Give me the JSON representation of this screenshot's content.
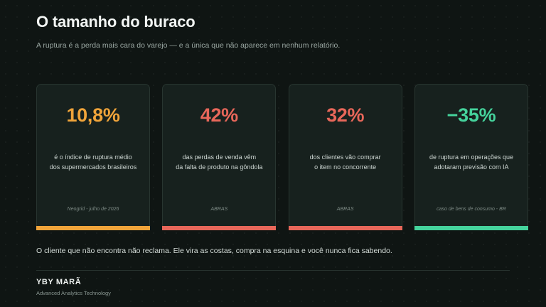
{
  "header": {
    "title": "O tamanho do buraco",
    "subtitle": "A ruptura é a perda mais cara do varejo — e a única que não aparece em nenhum relatório."
  },
  "cards": [
    {
      "value": "10,8%",
      "desc_line1": "é o índice de ruptura médio",
      "desc_line2": "dos supermercados brasileiros",
      "source": "Neogrid - julho de 2026",
      "color": "#f0a43a"
    },
    {
      "value": "42%",
      "desc_line1": "das perdas de venda vêm",
      "desc_line2": "da falta de produto na gôndola",
      "source": "ABRAS",
      "color": "#e8675a"
    },
    {
      "value": "32%",
      "desc_line1": "dos clientes vão comprar",
      "desc_line2": "o item no concorrente",
      "source": "ABRAS",
      "color": "#e8675a"
    },
    {
      "value": "−35%",
      "desc_line1": "de ruptura em operações que",
      "desc_line2": "adotaram previsão com IA",
      "source": "caso de bens de consumo - BR",
      "color": "#45d39c"
    }
  ],
  "tagline": "O cliente que não encontra não reclama. Ele vira as costas, compra na esquina e você nunca fica sabendo.",
  "footer": {
    "brand": "YBY MARÃ",
    "brand_sub": "Advanced Analytics Technology"
  }
}
